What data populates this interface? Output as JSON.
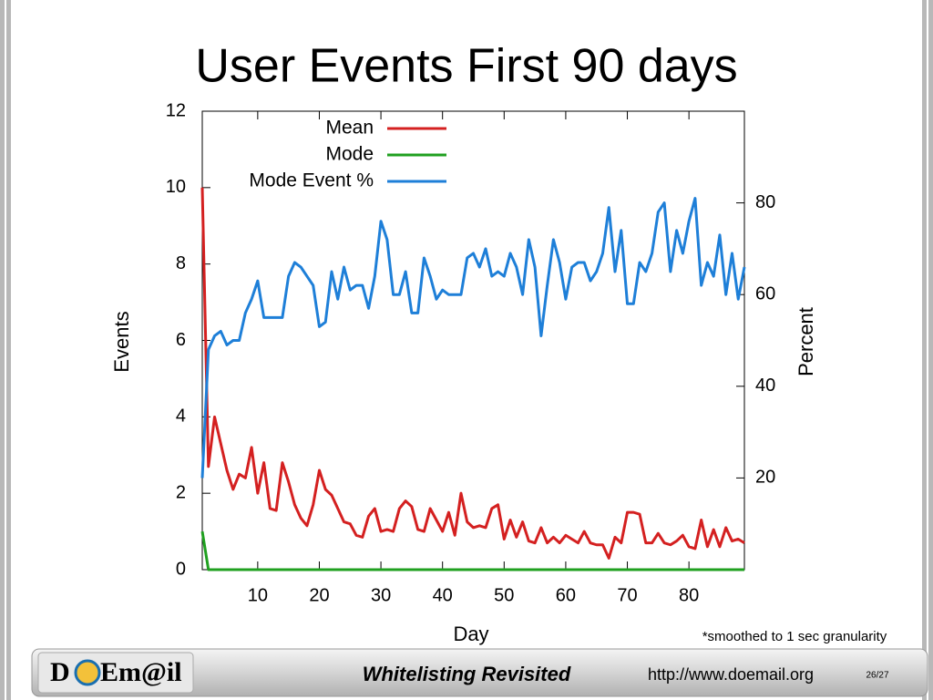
{
  "chart_data": {
    "type": "line",
    "title": "User Events First 90 days",
    "xlabel": "Day",
    "ylabel": "Events",
    "y2label": "Percent",
    "x": [
      1,
      2,
      3,
      4,
      5,
      6,
      7,
      8,
      9,
      10,
      11,
      12,
      13,
      14,
      15,
      16,
      17,
      18,
      19,
      20,
      21,
      22,
      23,
      24,
      25,
      26,
      27,
      28,
      29,
      30,
      31,
      32,
      33,
      34,
      35,
      36,
      37,
      38,
      39,
      40,
      41,
      42,
      43,
      44,
      45,
      46,
      47,
      48,
      49,
      50,
      51,
      52,
      53,
      54,
      55,
      56,
      57,
      58,
      59,
      60,
      61,
      62,
      63,
      64,
      65,
      66,
      67,
      68,
      69,
      70,
      71,
      72,
      73,
      74,
      75,
      76,
      77,
      78,
      79,
      80,
      81,
      82,
      83,
      84,
      85,
      86,
      87,
      88,
      89
    ],
    "series": [
      {
        "name": "Mean",
        "color": "#d42020",
        "axis": "y",
        "values": [
          10,
          2.7,
          4.0,
          3.3,
          2.6,
          2.1,
          2.5,
          2.4,
          3.2,
          2.0,
          2.8,
          1.6,
          1.55,
          2.8,
          2.3,
          1.7,
          1.35,
          1.15,
          1.7,
          2.6,
          2.1,
          1.95,
          1.6,
          1.25,
          1.2,
          0.9,
          0.85,
          1.4,
          1.6,
          1.0,
          1.05,
          1.0,
          1.6,
          1.8,
          1.65,
          1.05,
          1.0,
          1.6,
          1.3,
          1.0,
          1.5,
          0.9,
          2.0,
          1.25,
          1.1,
          1.15,
          1.1,
          1.6,
          1.7,
          0.8,
          1.3,
          0.85,
          1.25,
          0.75,
          0.7,
          1.1,
          0.7,
          0.85,
          0.7,
          0.9,
          0.8,
          0.7,
          1.0,
          0.7,
          0.65,
          0.65,
          0.3,
          0.85,
          0.7,
          1.5,
          1.5,
          1.45,
          0.7,
          0.7,
          0.95,
          0.7,
          0.65,
          0.75,
          0.9,
          0.6,
          0.55,
          1.3,
          0.6,
          1.05,
          0.6,
          1.1,
          0.75,
          0.8,
          0.7
        ]
      },
      {
        "name": "Mode",
        "color": "#20a020",
        "axis": "y",
        "values": [
          1,
          0,
          0,
          0,
          0,
          0,
          0,
          0,
          0,
          0,
          0,
          0,
          0,
          0,
          0,
          0,
          0,
          0,
          0,
          0,
          0,
          0,
          0,
          0,
          0,
          0,
          0,
          0,
          0,
          0,
          0,
          0,
          0,
          0,
          0,
          0,
          0,
          0,
          0,
          0,
          0,
          0,
          0,
          0,
          0,
          0,
          0,
          0,
          0,
          0,
          0,
          0,
          0,
          0,
          0,
          0,
          0,
          0,
          0,
          0,
          0,
          0,
          0,
          0,
          0,
          0,
          0,
          0,
          0,
          0,
          0,
          0,
          0,
          0,
          0,
          0,
          0,
          0,
          0,
          0,
          0,
          0,
          0,
          0,
          0,
          0,
          0,
          0,
          0
        ]
      },
      {
        "name": "Mode Event %",
        "color": "#1e7fd8",
        "axis": "y2",
        "values": [
          20,
          48,
          51,
          52,
          49,
          50,
          50,
          56,
          59,
          63,
          55,
          55,
          55,
          55,
          64,
          67,
          66,
          64,
          62,
          53,
          54,
          65,
          59,
          66,
          61,
          62,
          62,
          57,
          64,
          76,
          72,
          60,
          60,
          65,
          56,
          56,
          68,
          64,
          59,
          61,
          60,
          60,
          60,
          68,
          69,
          66,
          70,
          64,
          65,
          64,
          69,
          66,
          60,
          72,
          66,
          51,
          62,
          72,
          67,
          59,
          66,
          67,
          67,
          63,
          65,
          69,
          79,
          65,
          74,
          58,
          58,
          67,
          65,
          69,
          78,
          80,
          65,
          74,
          69,
          76,
          81,
          62,
          67,
          64,
          73,
          60,
          69,
          59,
          66
        ]
      }
    ],
    "xlim": [
      1,
      89
    ],
    "xticks": [
      10,
      20,
      30,
      40,
      50,
      60,
      70,
      80
    ],
    "ylim": [
      0,
      12
    ],
    "yticks": [
      0,
      2,
      4,
      6,
      8,
      10,
      12
    ],
    "y2lim": [
      0,
      100
    ],
    "y2ticks": [
      20,
      40,
      60,
      80
    ],
    "legend": "top-left",
    "grid": false,
    "note": "*smoothed to 1 sec granularity"
  },
  "footer": {
    "logo_left": "D",
    "logo_right": "Em@il",
    "title": "Whitelisting Revisited",
    "url": "http://www.doemail.org",
    "page": "26/27"
  }
}
